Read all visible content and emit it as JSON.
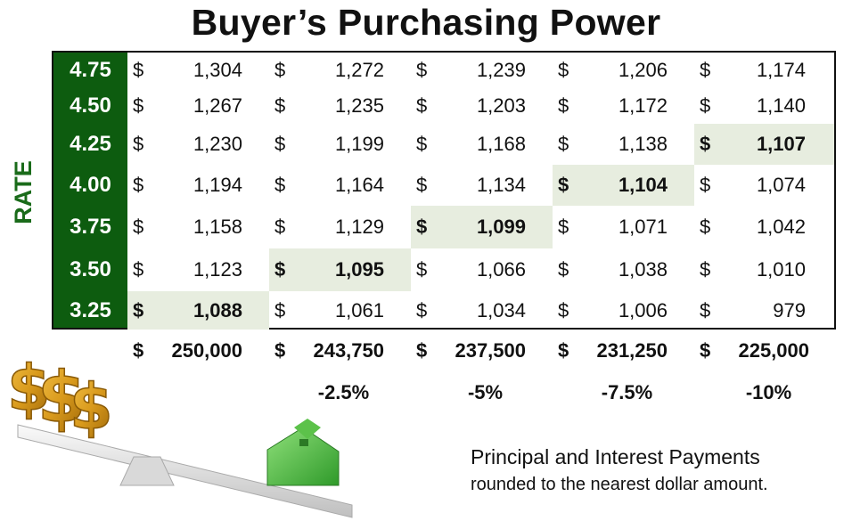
{
  "title": "Buyer’s Purchasing Power",
  "axis_label": "RATE",
  "rates": [
    "4.75",
    "4.50",
    "4.25",
    "4.00",
    "3.75",
    "3.50",
    "3.25"
  ],
  "currency_symbol": "$",
  "columns": [
    {
      "price": "250,000",
      "change": ""
    },
    {
      "price": "243,750",
      "change": "-2.5%"
    },
    {
      "price": "237,500",
      "change": "-5%"
    },
    {
      "price": "231,250",
      "change": "-7.5%"
    },
    {
      "price": "225,000",
      "change": "-10%"
    }
  ],
  "payments": [
    [
      "1,304",
      "1,272",
      "1,239",
      "1,206",
      "1,174"
    ],
    [
      "1,267",
      "1,235",
      "1,203",
      "1,172",
      "1,140"
    ],
    [
      "1,230",
      "1,199",
      "1,168",
      "1,138",
      "1,107"
    ],
    [
      "1,194",
      "1,164",
      "1,134",
      "1,104",
      "1,074"
    ],
    [
      "1,158",
      "1,129",
      "1,099",
      "1,071",
      "1,042"
    ],
    [
      "1,123",
      "1,095",
      "1,066",
      "1,038",
      "1,010"
    ],
    [
      "1,088",
      "1,061",
      "1,034",
      "1,006",
      "979"
    ]
  ],
  "highlighted_cells": [
    [
      6,
      0
    ],
    [
      5,
      1
    ],
    [
      4,
      2
    ],
    [
      3,
      3
    ],
    [
      2,
      4
    ]
  ],
  "colors": {
    "rate_bg": "#0d5c0f",
    "rate_text": "#ffffff",
    "highlight_bg": "#e7eddf",
    "axis_label": "#1a6b1a"
  },
  "illustration": {
    "icons": [
      "dollar-signs-icon",
      "seesaw-scale-icon",
      "green-house-icon"
    ]
  },
  "note": {
    "line1": "Principal and Interest Payments",
    "line2": "rounded to the nearest dollar amount."
  }
}
